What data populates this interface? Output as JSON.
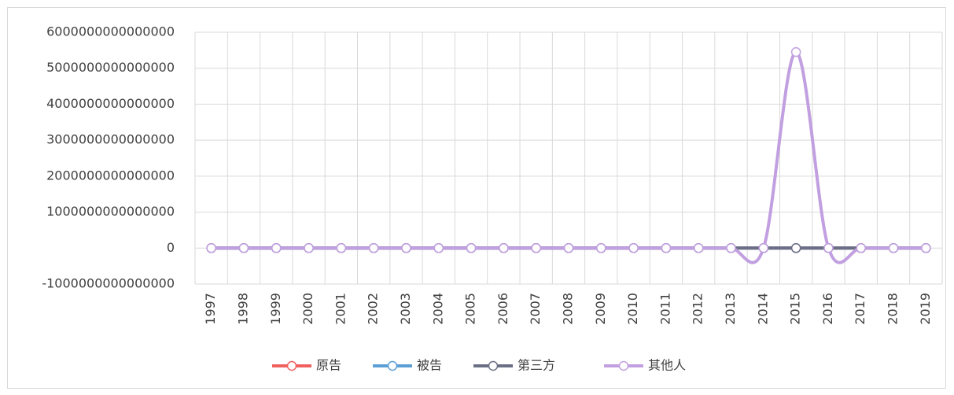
{
  "chart_data": {
    "type": "line",
    "smooth": true,
    "categories": [
      "1997",
      "1998",
      "1999",
      "2000",
      "2001",
      "2002",
      "2003",
      "2004",
      "2005",
      "2006",
      "2007",
      "2008",
      "2009",
      "2010",
      "2011",
      "2012",
      "2013",
      "2014",
      "2015",
      "2016",
      "2017",
      "2018",
      "2019"
    ],
    "series": [
      {
        "name": "原告",
        "color": "#f0605f",
        "values": [
          0,
          0,
          0,
          0,
          0,
          0,
          0,
          0,
          0,
          0,
          0,
          0,
          0,
          0,
          0,
          0,
          0,
          0,
          0,
          0,
          0,
          0,
          0
        ]
      },
      {
        "name": "被告",
        "color": "#5b9fd6",
        "values": [
          0,
          0,
          0,
          0,
          0,
          0,
          0,
          0,
          0,
          0,
          0,
          0,
          0,
          0,
          0,
          0,
          0,
          0,
          0,
          0,
          0,
          0,
          0
        ]
      },
      {
        "name": "第三方",
        "color": "#6b6f85",
        "values": [
          0,
          0,
          0,
          0,
          0,
          0,
          0,
          0,
          0,
          0,
          0,
          0,
          0,
          0,
          0,
          0,
          0,
          0,
          0,
          0,
          0,
          0,
          0
        ]
      },
      {
        "name": "其他人",
        "color": "#c19fe0",
        "values": [
          0,
          0,
          0,
          0,
          0,
          0,
          0,
          0,
          0,
          0,
          0,
          0,
          0,
          0,
          0,
          0,
          0,
          0,
          5450000000000000,
          0,
          0,
          0,
          0
        ]
      }
    ],
    "ylim": [
      -1000000000000000,
      6000000000000000
    ],
    "yticks": [
      -1000000000000000,
      0,
      1000000000000000,
      2000000000000000,
      3000000000000000,
      4000000000000000,
      5000000000000000,
      6000000000000000
    ],
    "grid": true,
    "legend": "bottom"
  }
}
